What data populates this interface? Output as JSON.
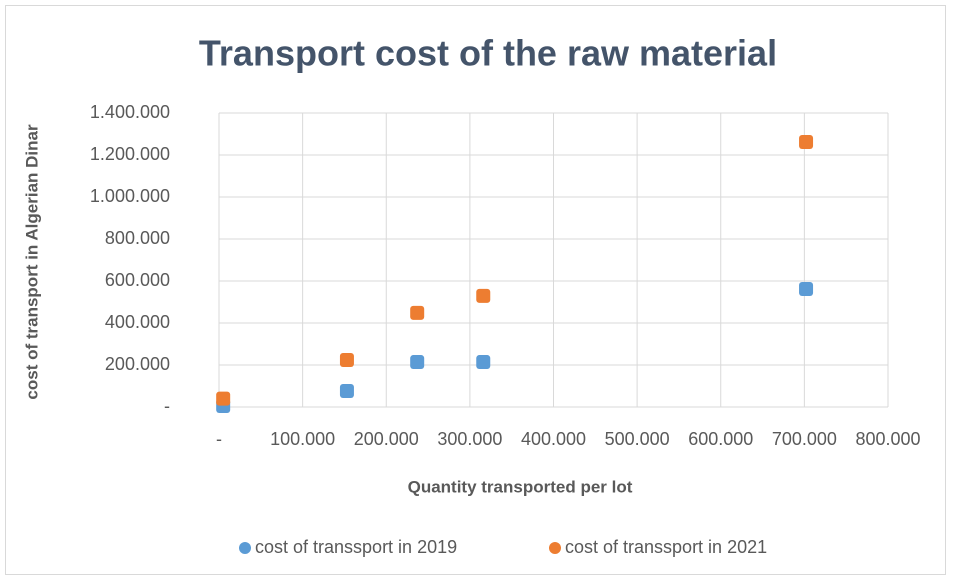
{
  "chart_data": {
    "type": "scatter",
    "title": "Transport cost of the raw material",
    "x_label": "Quantity transported per lot",
    "y_label": "cost of  transport in Algerian  Dinar",
    "series": [
      {
        "name": "cost of transsport in 2019",
        "color": "#5B9BD5",
        "x": [
          5000,
          153000,
          237000,
          316000,
          702000
        ],
        "values": [
          5000,
          76000,
          214000,
          214000,
          562000
        ]
      },
      {
        "name": "cost of transsport in 2021",
        "color": "#ED7D31",
        "x": [
          5000,
          153000,
          237000,
          316000,
          702000
        ],
        "values": [
          40000,
          224000,
          448000,
          529000,
          1262000
        ]
      }
    ],
    "xlim": [
      0,
      800000
    ],
    "xticks": [
      {
        "value": 0,
        "label": "-"
      },
      {
        "value": 100000,
        "label": "100.000"
      },
      {
        "value": 200000,
        "label": "200.000"
      },
      {
        "value": 300000,
        "label": "300.000"
      },
      {
        "value": 400000,
        "label": "400.000"
      },
      {
        "value": 500000,
        "label": "500.000"
      },
      {
        "value": 600000,
        "label": "600.000"
      },
      {
        "value": 700000,
        "label": "700.000"
      },
      {
        "value": 800000,
        "label": "800.000"
      }
    ],
    "ylim": [
      0,
      1400000
    ],
    "yticks": [
      {
        "value": 0,
        "label": "-"
      },
      {
        "value": 200000,
        "label": "200.000"
      },
      {
        "value": 400000,
        "label": "400.000"
      },
      {
        "value": 600000,
        "label": "600.000"
      },
      {
        "value": 800000,
        "label": "800.000"
      },
      {
        "value": 1000000,
        "label": "1.000.000"
      },
      {
        "value": 1200000,
        "label": "1.200.000"
      },
      {
        "value": 1400000,
        "label": "1.400.000"
      }
    ],
    "grid": true,
    "legend": "bottom"
  }
}
